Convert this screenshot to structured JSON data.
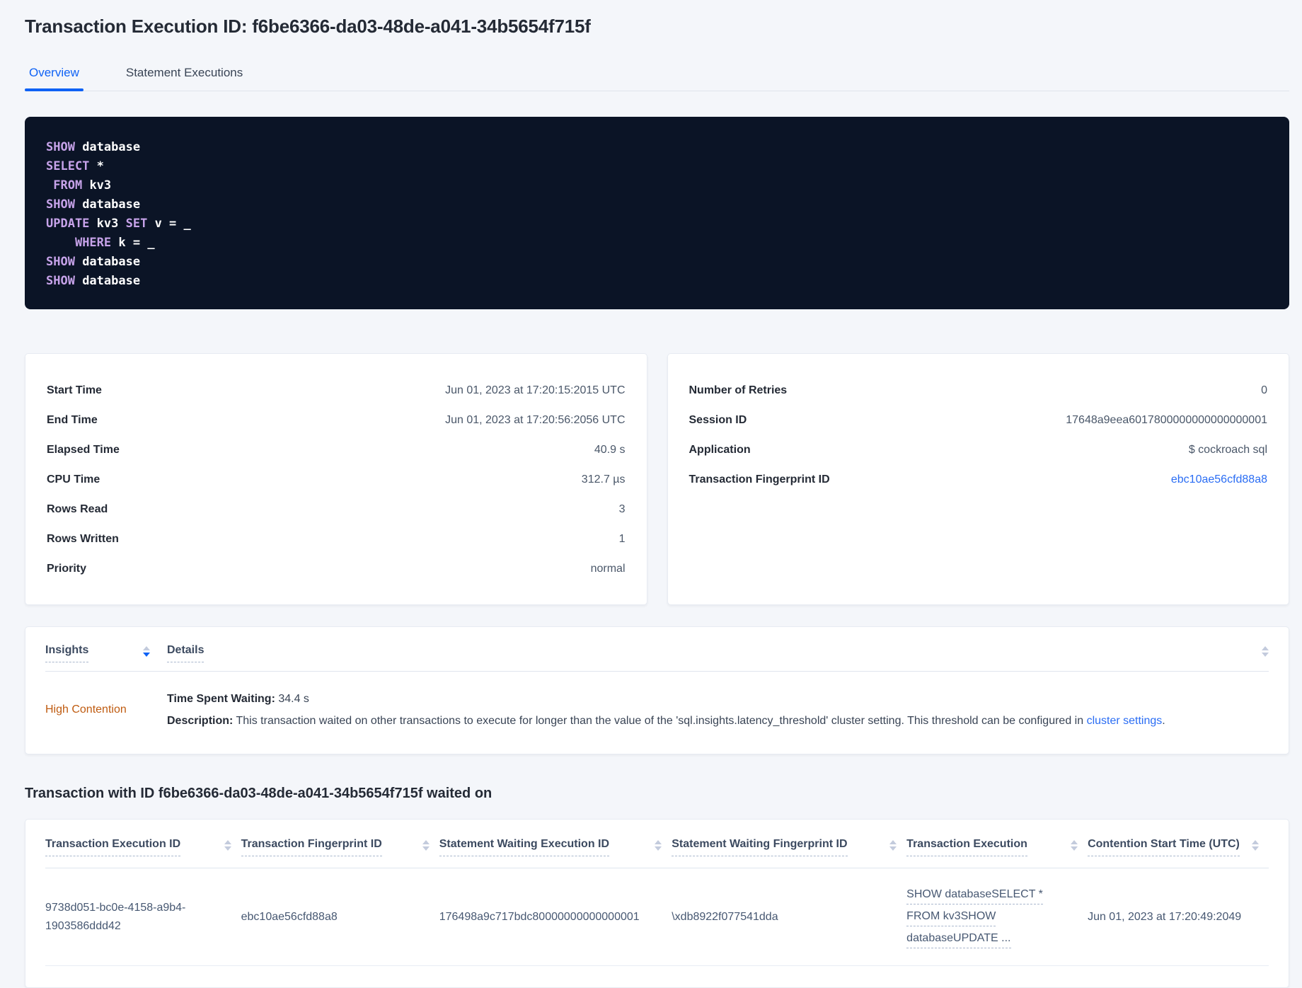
{
  "page": {
    "title": "Transaction Execution ID: f6be6366-da03-48de-a041-34b5654f715f"
  },
  "colors": {
    "accent_blue": "#0f62f5",
    "link_blue": "#2a6df4",
    "insight_orange": "#bf5b10",
    "code_background": "#0b1426",
    "code_keyword": "#c7a3ea",
    "code_text": "#ffffff",
    "page_background": "#f4f6fa"
  },
  "tabs": [
    {
      "label": "Overview",
      "active": true
    },
    {
      "label": "Statement Executions",
      "active": false
    }
  ],
  "sql": {
    "lines": [
      [
        {
          "t": "kw",
          "v": "SHOW"
        },
        {
          "t": "id",
          "v": " database"
        }
      ],
      [
        {
          "t": "kw",
          "v": "SELECT"
        },
        {
          "t": "id",
          "v": " *"
        }
      ],
      [
        {
          "t": "id",
          "v": " "
        },
        {
          "t": "kw",
          "v": "FROM"
        },
        {
          "t": "id",
          "v": " kv3"
        }
      ],
      [
        {
          "t": "kw",
          "v": "SHOW"
        },
        {
          "t": "id",
          "v": " database"
        }
      ],
      [
        {
          "t": "kw",
          "v": "UPDATE"
        },
        {
          "t": "id",
          "v": " kv3 "
        },
        {
          "t": "kw",
          "v": "SET"
        },
        {
          "t": "id",
          "v": " v = _"
        }
      ],
      [
        {
          "t": "id",
          "v": "    "
        },
        {
          "t": "kw",
          "v": "WHERE"
        },
        {
          "t": "id",
          "v": " k = _"
        }
      ],
      [
        {
          "t": "kw",
          "v": "SHOW"
        },
        {
          "t": "id",
          "v": " database"
        }
      ],
      [
        {
          "t": "kw",
          "v": "SHOW"
        },
        {
          "t": "id",
          "v": " database"
        }
      ]
    ]
  },
  "summary_left": {
    "rows": [
      {
        "label": "Start Time",
        "value": "Jun 01, 2023 at 17:20:15:2015 UTC"
      },
      {
        "label": "End Time",
        "value": "Jun 01, 2023 at 17:20:56:2056 UTC"
      },
      {
        "label": "Elapsed Time",
        "value": "40.9 s"
      },
      {
        "label": "CPU Time",
        "value": "312.7 µs"
      },
      {
        "label": "Rows Read",
        "value": "3"
      },
      {
        "label": "Rows Written",
        "value": "1"
      },
      {
        "label": "Priority",
        "value": "normal"
      }
    ]
  },
  "summary_right": {
    "rows": [
      {
        "label": "Number of Retries",
        "value": "0"
      },
      {
        "label": "Session ID",
        "value": "17648a9eea6017800000000000000001"
      },
      {
        "label": "Application",
        "value": "$ cockroach sql"
      },
      {
        "label": "Transaction Fingerprint ID",
        "value": "ebc10ae56cfd88a8"
      }
    ]
  },
  "insights_table": {
    "columns": [
      "Insights",
      "Details"
    ],
    "row": {
      "insight": "High Contention",
      "waiting_label": "Time Spent Waiting:",
      "waiting_value": " 34.4 s",
      "description_label": "Description:",
      "description_text": " This transaction waited on other transactions to execute for longer than the value of the 'sql.insights.latency_threshold' cluster setting. This threshold can be configured in ",
      "description_link": "cluster settings",
      "description_suffix": "."
    }
  },
  "waited_on": {
    "heading": "Transaction with ID f6be6366-da03-48de-a041-34b5654f715f waited on",
    "columns": [
      "Transaction Execution ID",
      "Transaction Fingerprint ID",
      "Statement Waiting Execution ID",
      "Statement Waiting Fingerprint ID",
      "Transaction Execution",
      "Contention Start Time (UTC)"
    ],
    "rows": [
      {
        "transaction_execution_id": "9738d051-bc0e-4158-a9b4-1903586ddd42",
        "transaction_fingerprint_id": "ebc10ae56cfd88a8",
        "statement_waiting_execution_id": "176498a9c717bdc80000000000000001",
        "statement_waiting_fingerprint_id": "\\xdb8922f077541dda",
        "transaction_execution_lines": [
          "SHOW databaseSELECT *",
          "FROM kv3SHOW",
          "databaseUPDATE ..."
        ],
        "contention_start_time": "Jun 01, 2023 at 17:20:49:2049"
      }
    ]
  }
}
